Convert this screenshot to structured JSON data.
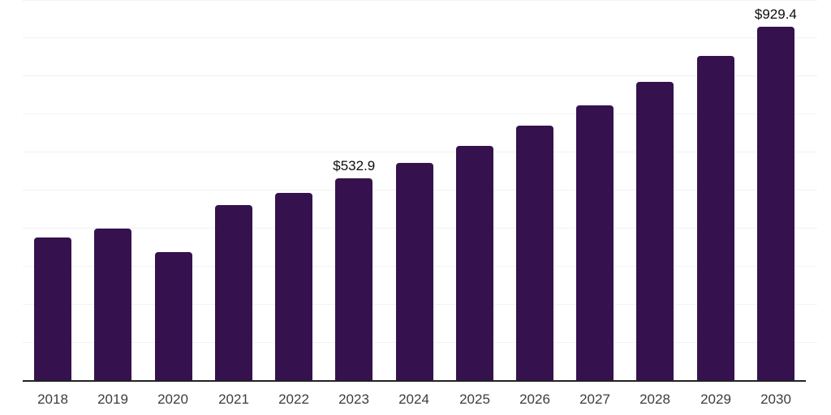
{
  "page": {
    "background_color": "#ffffff"
  },
  "chart_data": {
    "type": "bar",
    "title": "",
    "xlabel": "",
    "ylabel": "",
    "categories": [
      "2018",
      "2019",
      "2020",
      "2021",
      "2022",
      "2023",
      "2024",
      "2025",
      "2026",
      "2027",
      "2028",
      "2029",
      "2030"
    ],
    "values": [
      375.8,
      400.3,
      338.5,
      462.0,
      494.6,
      532.9,
      573.4,
      617.4,
      669.2,
      722.4,
      784.2,
      852.3,
      929.4
    ],
    "value_prefix": "$",
    "data_labels": [
      {
        "category": "2023",
        "text": "$532.9"
      },
      {
        "category": "2030",
        "text": "$929.4"
      }
    ],
    "ylim": [
      0,
      1000
    ],
    "grid": true,
    "gridline_step": 100,
    "y_axis_labels_visible": false,
    "legend_position": "none",
    "colors": {
      "bar": "#35124E",
      "gridline": "#f2f2f2",
      "axis_line": "#222222",
      "tick_label": "#3d3d3d",
      "data_label": "#0d0d0d"
    }
  }
}
